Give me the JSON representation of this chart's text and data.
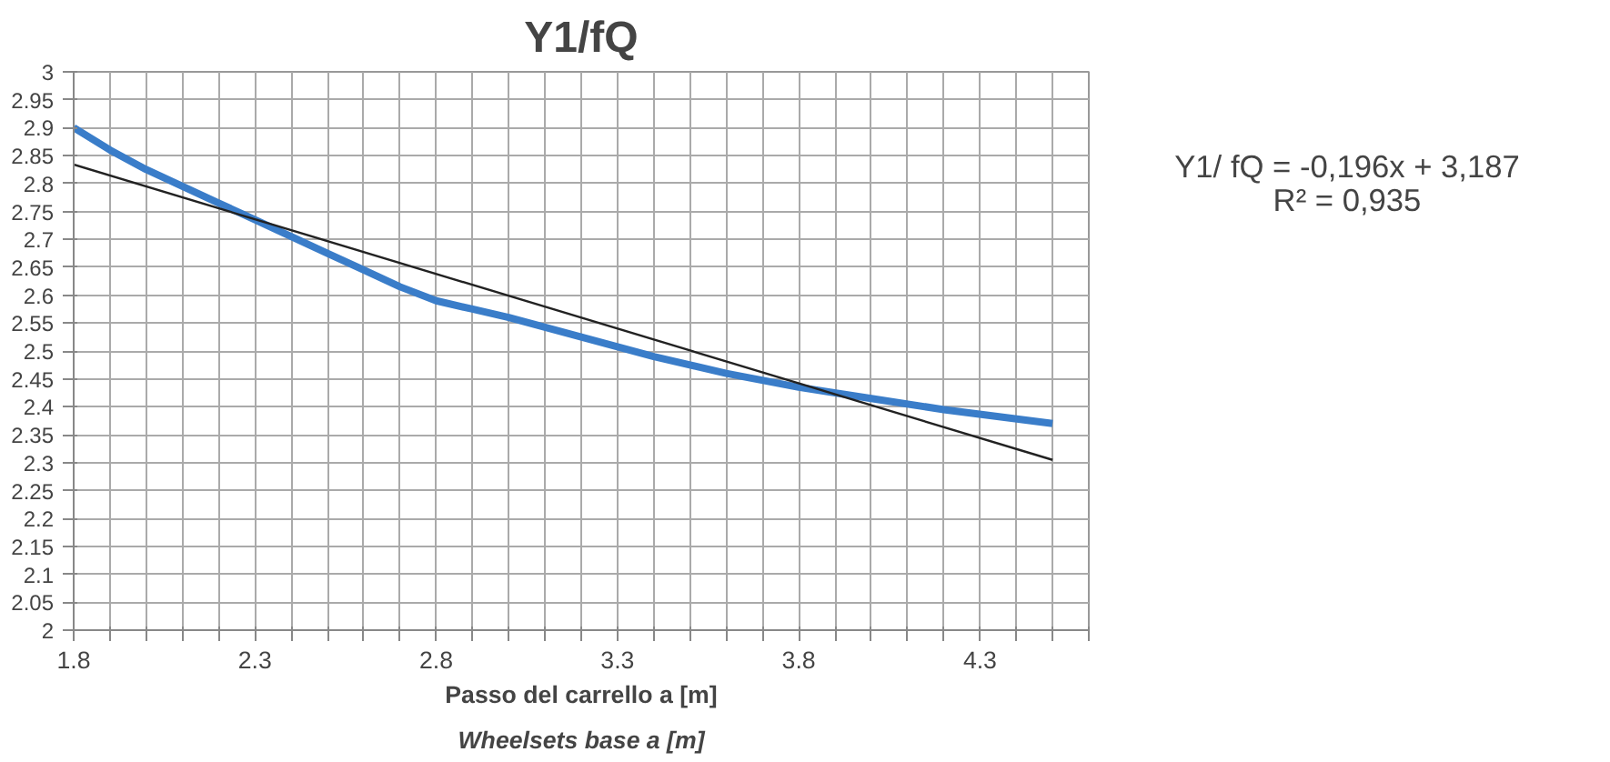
{
  "chart_data": {
    "type": "line",
    "title": "Y1/fQ",
    "xlabel": "Passo del carrello a [m]",
    "annotations": [
      "Wheelsets base a [m]",
      "Y1/ fQ = -0,196x + 3,187",
      "R² = 0,935"
    ],
    "series": [
      {
        "x": [
          1.8,
          1.9,
          2.0,
          2.1,
          2.2,
          2.3,
          2.4,
          2.5,
          2.6,
          2.7,
          2.8,
          2.9,
          3.0,
          3.2,
          3.4,
          3.6,
          3.8,
          4.0,
          4.2,
          4.5
        ],
        "values": [
          2.9,
          2.86,
          2.825,
          2.795,
          2.765,
          2.735,
          2.705,
          2.675,
          2.645,
          2.615,
          2.59,
          2.575,
          2.56,
          2.525,
          2.49,
          2.46,
          2.435,
          2.415,
          2.395,
          2.37
        ],
        "color": "#3a7dc9"
      },
      {
        "type": "line",
        "x": [
          1.8,
          4.5
        ],
        "values": [
          2.834,
          2.305
        ],
        "color": "#222222"
      }
    ],
    "xlim": [
      1.8,
      4.6
    ],
    "ylim": [
      2,
      3
    ],
    "xticks": [
      1.8,
      {
        "value": 1.9,
        "label": null
      },
      {
        "value": 2.0,
        "label": null
      },
      {
        "value": 2.1,
        "label": null
      },
      {
        "value": 2.2,
        "label": null
      },
      2.3,
      {
        "value": 2.4,
        "label": null
      },
      {
        "value": 2.5,
        "label": null
      },
      {
        "value": 2.6,
        "label": null
      },
      {
        "value": 2.7,
        "label": null
      },
      2.8,
      {
        "value": 2.9,
        "label": null
      },
      {
        "value": 3.0,
        "label": null
      },
      {
        "value": 3.1,
        "label": null
      },
      {
        "value": 3.2,
        "label": null
      },
      3.3,
      {
        "value": 3.4,
        "label": null
      },
      {
        "value": 3.5,
        "label": null
      },
      {
        "value": 3.6,
        "label": null
      },
      {
        "value": 3.7,
        "label": null
      },
      3.8,
      {
        "value": 3.9,
        "label": null
      },
      {
        "value": 4.0,
        "label": null
      },
      {
        "value": 4.1,
        "label": null
      },
      {
        "value": 4.2,
        "label": null
      },
      4.3,
      {
        "value": 4.4,
        "label": null
      },
      {
        "value": 4.5,
        "label": null
      },
      {
        "value": 4.6,
        "label": null
      }
    ],
    "yticks": [
      2,
      2.05,
      2.1,
      2.15,
      2.2,
      2.25,
      2.3,
      2.35,
      2.4,
      2.45,
      2.5,
      2.55,
      2.6,
      2.65,
      2.7,
      2.75,
      2.8,
      2.85,
      2.9,
      2.95,
      3
    ],
    "grid": true,
    "marker": "none",
    "line_style": "solid"
  }
}
